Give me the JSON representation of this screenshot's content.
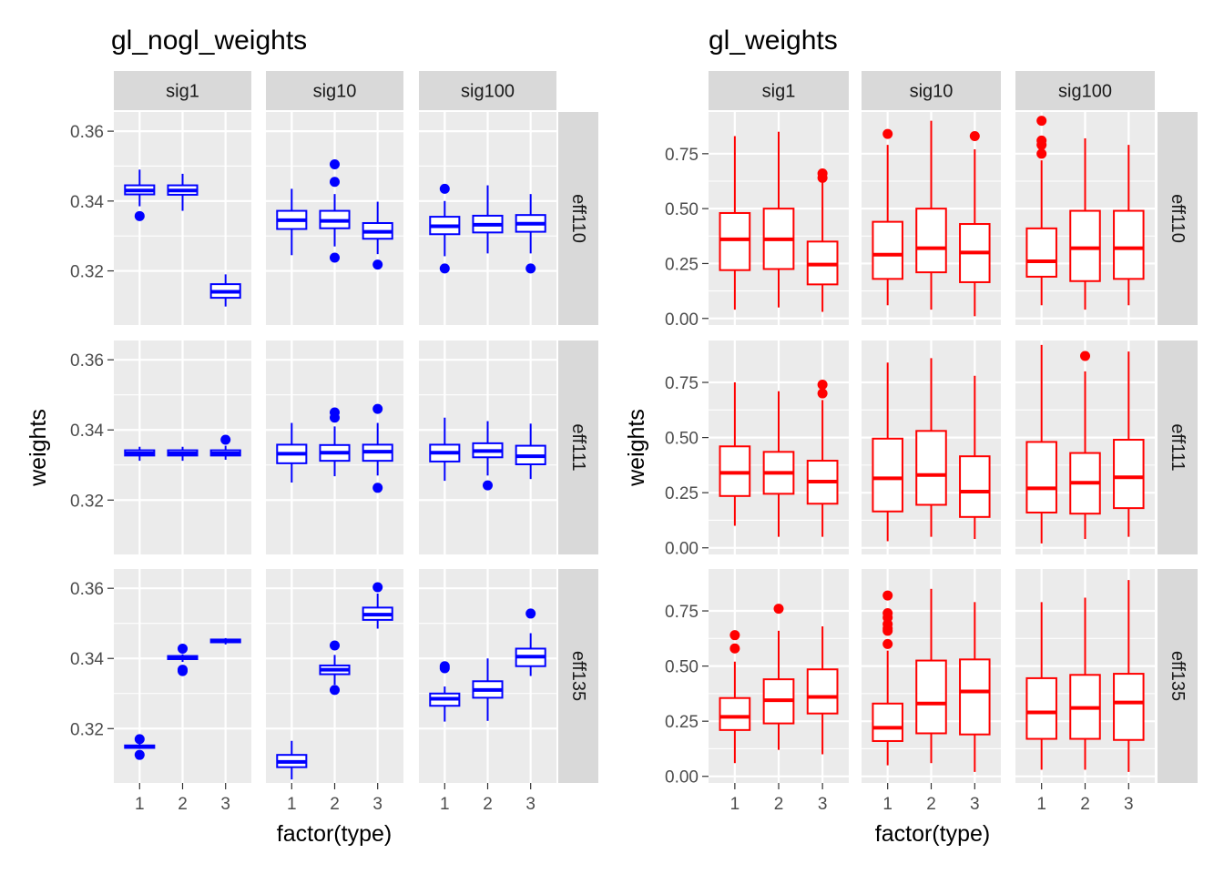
{
  "chart_data": [
    {
      "type": "boxplot",
      "title": "gl_nogl_weights",
      "xlabel": "factor(type)",
      "ylabel": "weights",
      "color": "#0000FF",
      "x_categories": [
        "1",
        "2",
        "3"
      ],
      "col_facets": [
        "sig1",
        "sig10",
        "sig100"
      ],
      "row_facets": [
        "eff110",
        "eff111",
        "eff135"
      ],
      "ylim": [
        0.3045,
        0.3655
      ],
      "yticks": [
        0.32,
        0.34,
        0.36
      ],
      "ytick_labels": [
        "0.32",
        "0.34",
        "0.36"
      ],
      "grid": true,
      "panels": [
        {
          "col": "sig1",
          "row": "eff110",
          "boxes": [
            {
              "x": "1",
              "lower": 0.3385,
              "q1": 0.3419,
              "median": 0.343,
              "q3": 0.3445,
              "upper": 0.349,
              "outliers": [
                0.3357
              ]
            },
            {
              "x": "2",
              "lower": 0.3372,
              "q1": 0.3418,
              "median": 0.343,
              "q3": 0.3445,
              "upper": 0.3478,
              "outliers": []
            },
            {
              "x": "3",
              "lower": 0.3098,
              "q1": 0.3123,
              "median": 0.314,
              "q3": 0.3162,
              "upper": 0.319,
              "outliers": []
            }
          ]
        },
        {
          "col": "sig10",
          "row": "eff110",
          "boxes": [
            {
              "x": "1",
              "lower": 0.3245,
              "q1": 0.332,
              "median": 0.3345,
              "q3": 0.3372,
              "upper": 0.3435,
              "outliers": []
            },
            {
              "x": "2",
              "lower": 0.327,
              "q1": 0.3322,
              "median": 0.3343,
              "q3": 0.3372,
              "upper": 0.342,
              "outliers": [
                0.3505,
                0.3455,
                0.3238
              ]
            },
            {
              "x": "3",
              "lower": 0.3248,
              "q1": 0.3292,
              "median": 0.3312,
              "q3": 0.3337,
              "upper": 0.3398,
              "outliers": [
                0.3218
              ]
            }
          ]
        },
        {
          "col": "sig100",
          "row": "eff110",
          "boxes": [
            {
              "x": "1",
              "lower": 0.3242,
              "q1": 0.3305,
              "median": 0.3328,
              "q3": 0.3355,
              "upper": 0.34,
              "outliers": [
                0.3435,
                0.3207
              ]
            },
            {
              "x": "2",
              "lower": 0.325,
              "q1": 0.331,
              "median": 0.3332,
              "q3": 0.3358,
              "upper": 0.3445,
              "outliers": []
            },
            {
              "x": "3",
              "lower": 0.325,
              "q1": 0.3312,
              "median": 0.3335,
              "q3": 0.336,
              "upper": 0.342,
              "outliers": [
                0.3207
              ]
            }
          ]
        },
        {
          "col": "sig1",
          "row": "eff111",
          "boxes": [
            {
              "x": "1",
              "lower": 0.3312,
              "q1": 0.3327,
              "median": 0.3333,
              "q3": 0.3342,
              "upper": 0.3352,
              "outliers": []
            },
            {
              "x": "2",
              "lower": 0.3312,
              "q1": 0.3327,
              "median": 0.3333,
              "q3": 0.3342,
              "upper": 0.3352,
              "outliers": []
            },
            {
              "x": "3",
              "lower": 0.3315,
              "q1": 0.3327,
              "median": 0.3333,
              "q3": 0.3342,
              "upper": 0.3355,
              "outliers": [
                0.3372
              ]
            }
          ]
        },
        {
          "col": "sig10",
          "row": "eff111",
          "boxes": [
            {
              "x": "1",
              "lower": 0.325,
              "q1": 0.3305,
              "median": 0.3332,
              "q3": 0.3358,
              "upper": 0.342,
              "outliers": []
            },
            {
              "x": "2",
              "lower": 0.3268,
              "q1": 0.3312,
              "median": 0.3335,
              "q3": 0.3357,
              "upper": 0.341,
              "outliers": [
                0.345,
                0.3435
              ]
            },
            {
              "x": "3",
              "lower": 0.327,
              "q1": 0.3312,
              "median": 0.3338,
              "q3": 0.3358,
              "upper": 0.342,
              "outliers": [
                0.346,
                0.3235
              ]
            }
          ]
        },
        {
          "col": "sig100",
          "row": "eff111",
          "boxes": [
            {
              "x": "1",
              "lower": 0.3255,
              "q1": 0.331,
              "median": 0.3335,
              "q3": 0.3358,
              "upper": 0.3435,
              "outliers": []
            },
            {
              "x": "2",
              "lower": 0.327,
              "q1": 0.3322,
              "median": 0.334,
              "q3": 0.3362,
              "upper": 0.3425,
              "outliers": [
                0.3242
              ]
            },
            {
              "x": "3",
              "lower": 0.326,
              "q1": 0.3302,
              "median": 0.3325,
              "q3": 0.3355,
              "upper": 0.3418,
              "outliers": []
            }
          ]
        },
        {
          "col": "sig1",
          "row": "eff135",
          "boxes": [
            {
              "x": "1",
              "lower": 0.3142,
              "q1": 0.3145,
              "median": 0.3148,
              "q3": 0.3152,
              "upper": 0.3158,
              "outliers": [
                0.317,
                0.3125
              ]
            },
            {
              "x": "2",
              "lower": 0.339,
              "q1": 0.3398,
              "median": 0.3402,
              "q3": 0.3407,
              "upper": 0.3412,
              "outliers": [
                0.3428,
                0.3368,
                0.3364
              ]
            },
            {
              "x": "3",
              "lower": 0.344,
              "q1": 0.3446,
              "median": 0.345,
              "q3": 0.3454,
              "upper": 0.3458,
              "outliers": []
            }
          ]
        },
        {
          "col": "sig10",
          "row": "eff135",
          "boxes": [
            {
              "x": "1",
              "lower": 0.3055,
              "q1": 0.309,
              "median": 0.3105,
              "q3": 0.3125,
              "upper": 0.3165,
              "outliers": []
            },
            {
              "x": "2",
              "lower": 0.3325,
              "q1": 0.3355,
              "median": 0.3368,
              "q3": 0.338,
              "upper": 0.341,
              "outliers": [
                0.3437,
                0.331
              ]
            },
            {
              "x": "3",
              "lower": 0.3485,
              "q1": 0.351,
              "median": 0.3525,
              "q3": 0.3545,
              "upper": 0.3585,
              "outliers": [
                0.3603
              ]
            }
          ]
        },
        {
          "col": "sig100",
          "row": "eff135",
          "boxes": [
            {
              "x": "1",
              "lower": 0.322,
              "q1": 0.3265,
              "median": 0.3285,
              "q3": 0.33,
              "upper": 0.332,
              "outliers": [
                0.3378,
                0.3372
              ]
            },
            {
              "x": "2",
              "lower": 0.3222,
              "q1": 0.3288,
              "median": 0.331,
              "q3": 0.3335,
              "upper": 0.34,
              "outliers": []
            },
            {
              "x": "3",
              "lower": 0.335,
              "q1": 0.3378,
              "median": 0.3405,
              "q3": 0.3428,
              "upper": 0.3472,
              "outliers": [
                0.3528
              ]
            }
          ]
        }
      ]
    },
    {
      "type": "boxplot",
      "title": "gl_weights",
      "xlabel": "factor(type)",
      "ylabel": "weights",
      "color": "#FF0000",
      "x_categories": [
        "1",
        "2",
        "3"
      ],
      "col_facets": [
        "sig1",
        "sig10",
        "sig100"
      ],
      "row_facets": [
        "eff110",
        "eff111",
        "eff135"
      ],
      "ylim": [
        -0.03,
        0.94
      ],
      "yticks": [
        0.0,
        0.25,
        0.5,
        0.75
      ],
      "ytick_labels": [
        "0.00",
        "0.25",
        "0.50",
        "0.75"
      ],
      "grid": true,
      "panels": [
        {
          "col": "sig1",
          "row": "eff110",
          "boxes": [
            {
              "x": "1",
              "lower": 0.04,
              "q1": 0.22,
              "median": 0.36,
              "q3": 0.48,
              "upper": 0.83,
              "outliers": []
            },
            {
              "x": "2",
              "lower": 0.05,
              "q1": 0.225,
              "median": 0.36,
              "q3": 0.5,
              "upper": 0.85,
              "outliers": []
            },
            {
              "x": "3",
              "lower": 0.03,
              "q1": 0.155,
              "median": 0.245,
              "q3": 0.35,
              "upper": 0.63,
              "outliers": [
                0.66,
                0.64
              ]
            }
          ]
        },
        {
          "col": "sig10",
          "row": "eff110",
          "boxes": [
            {
              "x": "1",
              "lower": 0.06,
              "q1": 0.18,
              "median": 0.29,
              "q3": 0.44,
              "upper": 0.79,
              "outliers": [
                0.84
              ]
            },
            {
              "x": "2",
              "lower": 0.04,
              "q1": 0.21,
              "median": 0.32,
              "q3": 0.5,
              "upper": 0.9,
              "outliers": []
            },
            {
              "x": "3",
              "lower": 0.01,
              "q1": 0.165,
              "median": 0.3,
              "q3": 0.43,
              "upper": 0.77,
              "outliers": [
                0.83
              ]
            }
          ]
        },
        {
          "col": "sig100",
          "row": "eff110",
          "boxes": [
            {
              "x": "1",
              "lower": 0.06,
              "q1": 0.19,
              "median": 0.26,
              "q3": 0.41,
              "upper": 0.72,
              "outliers": [
                0.9,
                0.81,
                0.79,
                0.75
              ]
            },
            {
              "x": "2",
              "lower": 0.04,
              "q1": 0.17,
              "median": 0.32,
              "q3": 0.49,
              "upper": 0.82,
              "outliers": []
            },
            {
              "x": "3",
              "lower": 0.06,
              "q1": 0.18,
              "median": 0.32,
              "q3": 0.49,
              "upper": 0.79,
              "outliers": []
            }
          ]
        },
        {
          "col": "sig1",
          "row": "eff111",
          "boxes": [
            {
              "x": "1",
              "lower": 0.1,
              "q1": 0.235,
              "median": 0.34,
              "q3": 0.46,
              "upper": 0.75,
              "outliers": []
            },
            {
              "x": "2",
              "lower": 0.05,
              "q1": 0.245,
              "median": 0.34,
              "q3": 0.435,
              "upper": 0.71,
              "outliers": []
            },
            {
              "x": "3",
              "lower": 0.05,
              "q1": 0.2,
              "median": 0.3,
              "q3": 0.395,
              "upper": 0.67,
              "outliers": [
                0.74,
                0.7
              ]
            }
          ]
        },
        {
          "col": "sig10",
          "row": "eff111",
          "boxes": [
            {
              "x": "1",
              "lower": 0.03,
              "q1": 0.165,
              "median": 0.315,
              "q3": 0.495,
              "upper": 0.84,
              "outliers": []
            },
            {
              "x": "2",
              "lower": 0.05,
              "q1": 0.195,
              "median": 0.33,
              "q3": 0.53,
              "upper": 0.86,
              "outliers": []
            },
            {
              "x": "3",
              "lower": 0.04,
              "q1": 0.14,
              "median": 0.255,
              "q3": 0.415,
              "upper": 0.78,
              "outliers": []
            }
          ]
        },
        {
          "col": "sig100",
          "row": "eff111",
          "boxes": [
            {
              "x": "1",
              "lower": 0.02,
              "q1": 0.16,
              "median": 0.27,
              "q3": 0.48,
              "upper": 0.92,
              "outliers": []
            },
            {
              "x": "2",
              "lower": 0.04,
              "q1": 0.155,
              "median": 0.295,
              "q3": 0.43,
              "upper": 0.8,
              "outliers": [
                0.87
              ]
            },
            {
              "x": "3",
              "lower": 0.05,
              "q1": 0.18,
              "median": 0.32,
              "q3": 0.49,
              "upper": 0.89,
              "outliers": []
            }
          ]
        },
        {
          "col": "sig1",
          "row": "eff135",
          "boxes": [
            {
              "x": "1",
              "lower": 0.06,
              "q1": 0.21,
              "median": 0.27,
              "q3": 0.355,
              "upper": 0.52,
              "outliers": [
                0.64,
                0.58
              ]
            },
            {
              "x": "2",
              "lower": 0.12,
              "q1": 0.24,
              "median": 0.345,
              "q3": 0.44,
              "upper": 0.66,
              "outliers": [
                0.76
              ]
            },
            {
              "x": "3",
              "lower": 0.1,
              "q1": 0.285,
              "median": 0.36,
              "q3": 0.485,
              "upper": 0.68,
              "outliers": []
            }
          ]
        },
        {
          "col": "sig10",
          "row": "eff135",
          "boxes": [
            {
              "x": "1",
              "lower": 0.05,
              "q1": 0.16,
              "median": 0.22,
              "q3": 0.33,
              "upper": 0.57,
              "outliers": [
                0.82,
                0.74,
                0.72,
                0.69,
                0.67,
                0.66,
                0.6
              ]
            },
            {
              "x": "2",
              "lower": 0.06,
              "q1": 0.195,
              "median": 0.33,
              "q3": 0.525,
              "upper": 0.85,
              "outliers": []
            },
            {
              "x": "3",
              "lower": 0.02,
              "q1": 0.19,
              "median": 0.385,
              "q3": 0.53,
              "upper": 0.79,
              "outliers": []
            }
          ]
        },
        {
          "col": "sig100",
          "row": "eff135",
          "boxes": [
            {
              "x": "1",
              "lower": 0.03,
              "q1": 0.17,
              "median": 0.29,
              "q3": 0.445,
              "upper": 0.79,
              "outliers": []
            },
            {
              "x": "2",
              "lower": 0.03,
              "q1": 0.17,
              "median": 0.31,
              "q3": 0.46,
              "upper": 0.81,
              "outliers": []
            },
            {
              "x": "3",
              "lower": 0.02,
              "q1": 0.165,
              "median": 0.335,
              "q3": 0.465,
              "upper": 0.89,
              "outliers": []
            }
          ]
        }
      ]
    }
  ]
}
